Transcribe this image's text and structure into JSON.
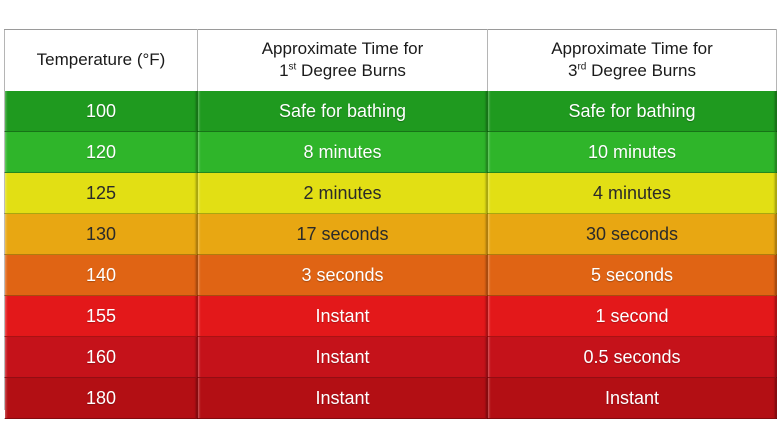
{
  "table": {
    "headers": {
      "temperature": "Temperature (°F)",
      "first_degree": {
        "line1": "Approximate Time for",
        "num": "1",
        "sup": "st",
        "rest": " Degree Burns"
      },
      "third_degree": {
        "line1": "Approximate Time for",
        "num": "3",
        "sup": "rd",
        "rest": " Degree Burns"
      }
    },
    "rows": [
      {
        "temperature": "100",
        "first_degree": "Safe for bathing",
        "third_degree": "Safe for bathing",
        "color": "#1f9a1f",
        "text_color": "#ffffff"
      },
      {
        "temperature": "120",
        "first_degree": "8 minutes",
        "third_degree": "10 minutes",
        "color": "#2fb52a",
        "text_color": "#ffffff"
      },
      {
        "temperature": "125",
        "first_degree": "2 minutes",
        "third_degree": "4 minutes",
        "color": "#e2df14",
        "text_color": "#2a2a2a"
      },
      {
        "temperature": "130",
        "first_degree": "17 seconds",
        "third_degree": "30 seconds",
        "color": "#e8a712",
        "text_color": "#2a2a2a"
      },
      {
        "temperature": "140",
        "first_degree": "3 seconds",
        "third_degree": "5 seconds",
        "color": "#e06414",
        "text_color": "#ffffff"
      },
      {
        "temperature": "155",
        "first_degree": "Instant",
        "third_degree": "1 second",
        "color": "#e3181a",
        "text_color": "#ffffff"
      },
      {
        "temperature": "160",
        "first_degree": "Instant",
        "third_degree": "0.5 seconds",
        "color": "#c5121a",
        "text_color": "#ffffff"
      },
      {
        "temperature": "180",
        "first_degree": "Instant",
        "third_degree": "Instant",
        "color": "#b30f14",
        "text_color": "#ffffff"
      }
    ]
  }
}
